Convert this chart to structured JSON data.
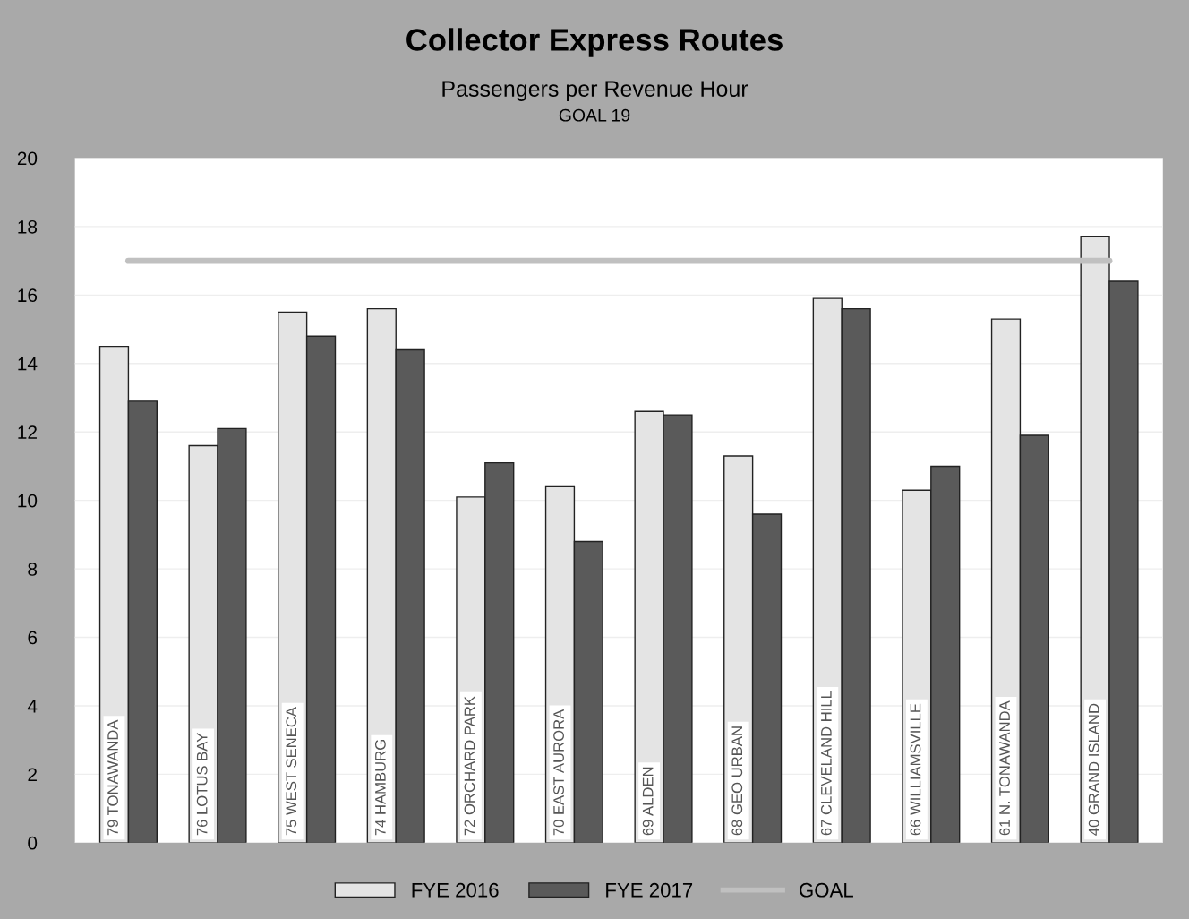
{
  "chart_data": {
    "type": "bar",
    "title": "Collector Express Routes",
    "subtitle": "Passengers per Revenue Hour",
    "annotations": [
      "GOAL 19"
    ],
    "categories": [
      "79 TONAWANDA",
      "76 LOTUS BAY",
      "75 WEST SENECA",
      "74 HAMBURG",
      "72 ORCHARD PARK",
      "70 EAST AURORA",
      "69 ALDEN",
      "68 GEO URBAN",
      "67 CLEVELAND HILL",
      "66 WILLIAMSVILLE",
      "61 N. TONAWANDA",
      "40 GRAND ISLAND"
    ],
    "series": [
      {
        "name": "FYE 2016",
        "color": "#e4e4e4",
        "values": [
          14.5,
          11.6,
          15.5,
          15.6,
          10.1,
          10.4,
          12.6,
          11.3,
          15.9,
          10.3,
          15.3,
          17.7
        ]
      },
      {
        "name": "FYE 2017",
        "color": "#5a5a5a",
        "values": [
          12.9,
          12.1,
          14.8,
          14.4,
          11.1,
          8.8,
          12.5,
          9.6,
          15.6,
          11.0,
          11.9,
          16.4
        ]
      },
      {
        "name": "GOAL",
        "type": "line",
        "color": "#c0c0c0",
        "values": [
          17,
          17,
          17,
          17,
          17,
          17,
          17,
          17,
          17,
          17,
          17,
          17
        ]
      }
    ],
    "ylim": [
      0,
      20
    ],
    "yticks": [
      0,
      2,
      4,
      6,
      8,
      10,
      12,
      14,
      16,
      18,
      20
    ],
    "grid": "y",
    "legend": "bottom"
  }
}
